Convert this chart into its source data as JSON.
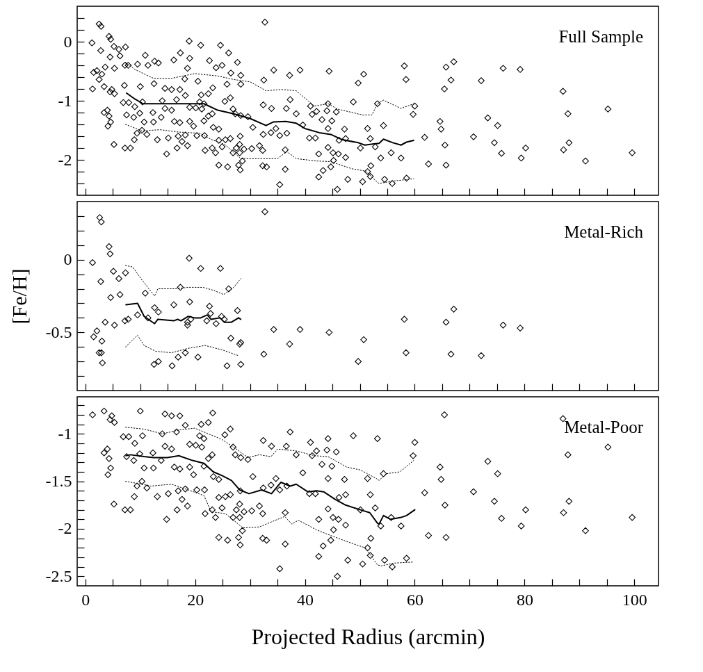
{
  "chart_data": [
    {
      "type": "scatter",
      "annotations": [
        "Full Sample"
      ],
      "tick_labels": "y",
      "xlim": [
        -1.5,
        104.4
      ],
      "ylim": [
        -2.6,
        0.6
      ],
      "xticks": [
        0,
        {
          "value": 5,
          "label": null
        },
        {
          "value": 10,
          "label": null
        },
        {
          "value": 15,
          "label": null
        },
        20,
        {
          "value": 25,
          "label": null
        },
        {
          "value": 30,
          "label": null
        },
        {
          "value": 35,
          "label": null
        },
        40,
        {
          "value": 45,
          "label": null
        },
        {
          "value": 50,
          "label": null
        },
        {
          "value": 55,
          "label": null
        },
        60,
        {
          "value": 65,
          "label": null
        },
        {
          "value": 70,
          "label": null
        },
        {
          "value": 75,
          "label": null
        },
        80,
        {
          "value": 85,
          "label": null
        },
        {
          "value": 90,
          "label": null
        },
        {
          "value": 95,
          "label": null
        },
        100
      ],
      "yticks": [
        {
          "value": -2.4,
          "label": null
        },
        {
          "value": -2.2,
          "label": null
        },
        -2,
        {
          "value": -1.8,
          "label": null
        },
        {
          "value": -1.6,
          "label": null
        },
        {
          "value": -1.4,
          "label": null
        },
        {
          "value": -1.2,
          "label": null
        },
        -1,
        {
          "value": -0.8,
          "label": null
        },
        {
          "value": -0.6,
          "label": null
        },
        {
          "value": -0.4,
          "label": null
        },
        {
          "value": -0.2,
          "label": null
        },
        0,
        {
          "value": 0.2,
          "label": null
        },
        {
          "value": 0.4,
          "label": null
        }
      ],
      "series": [
        {
          "type": "scatter",
          "marker": "diamond",
          "color": "#000000",
          "x": [
            2.5,
            2.85,
            1.2,
            2.8,
            4.3,
            4.6,
            5.2,
            6.1,
            7.3,
            4.5,
            6.3,
            1.5,
            2.1,
            3.0,
            2.5,
            3.4,
            1.3,
            3.6,
            5.3,
            4.8,
            4.5,
            5.3,
            7.2,
            7.8,
            9.5,
            10.9,
            11.4,
            12.6,
            13.3,
            16.1,
            17.3,
            18.9,
            21.0,
            24.6,
            26.1,
            19.0,
            18.6,
            22.6,
            23.8,
            24.9,
            27.7,
            32.7,
            18.1,
            20.5,
            26.5,
            28.3,
            28.3,
            25.8,
            32.5,
            34.3,
            37.2,
            39.1,
            44.4,
            50.7,
            49.7,
            7.1,
            10.0,
            12.5,
            14.5,
            15.7,
            17.2,
            18.2,
            6.9,
            7.9,
            10.4,
            9.0,
            4.0,
            3.4,
            4.3,
            4.6,
            4.1,
            5.2,
            7.2,
            8.2,
            7.5,
            8.8,
            9.9,
            10.7,
            12.3,
            13.8,
            12.4,
            9.4,
            10.3,
            11.2,
            8.9,
            13.1,
            15.1,
            14.8,
            16.7,
            16.2,
            17.2,
            14.5,
            15.7,
            16.6,
            14.0,
            19.0,
            20.1,
            21.2,
            21.1,
            22.4,
            23.2,
            20.8,
            21.6,
            23.1,
            22.4,
            21.6,
            19.0,
            19.7,
            18.2,
            16.9,
            17.6,
            18.6,
            20.3,
            21.7,
            23.3,
            24.3,
            21.8,
            23.1,
            23.7,
            24.3,
            24.9,
            25.5,
            26.4,
            25.4,
            26.4,
            26.9,
            27.3,
            28.3,
            29.6,
            30.5,
            28.2,
            28.1,
            27.5,
            26.9,
            28.1,
            28.9,
            30.3,
            31.7,
            32.3,
            28.6,
            27.9,
            28.2,
            24.3,
            25.9,
            32.3,
            33.0,
            36.4,
            35.4,
            32.4,
            33.9,
            32.4,
            33.8,
            34.7,
            35.4,
            36.7,
            36.6,
            37.3,
            38.4,
            39.6,
            36.4,
            41.0,
            42.1,
            41.3,
            44.2,
            45.7,
            44.0,
            43.1,
            44.9,
            44.2,
            47.2,
            48.8,
            51.4,
            40.8,
            41.9,
            46.2,
            47.4,
            51.9,
            50.1,
            52.8,
            42.5,
            44.2,
            45.1,
            46.1,
            47.4,
            45.2,
            44.7,
            43.3,
            42.5,
            47.8,
            45.9,
            50.5,
            51.4,
            52.0,
            51.9,
            53.2,
            54.3,
            53.8,
            55.7,
            57.5,
            54.5,
            55.9,
            58.5,
            58.1,
            58.4,
            60.0,
            59.7,
            61.8,
            62.5,
            64.6,
            64.8,
            65.5,
            65.7,
            65.4,
            65.7,
            66.6,
            67.1,
            72.1,
            70.7,
            73.3,
            75.1,
            74.5,
            75.8,
            76.1,
            79.2,
            79.4,
            80.2,
            87.0,
            87.9,
            88.1,
            87.1,
            91.1,
            95.2,
            99.6
          ],
          "values": [
            0.3,
            0.26,
            -0.02,
            -0.15,
            0.09,
            0.04,
            -0.08,
            -0.13,
            -0.09,
            -0.26,
            -0.24,
            -0.52,
            -0.49,
            -0.55,
            -0.64,
            -0.76,
            -0.8,
            -0.43,
            -0.45,
            -0.81,
            -0.85,
            -0.88,
            -0.4,
            -0.4,
            -0.38,
            -0.23,
            -0.4,
            -0.33,
            -0.36,
            -0.31,
            -0.19,
            0.01,
            -0.06,
            -0.06,
            -0.19,
            -0.28,
            -0.45,
            -0.32,
            -0.44,
            -0.4,
            -0.35,
            0.33,
            -0.63,
            -0.67,
            -0.53,
            -0.57,
            -0.72,
            -0.72,
            -0.65,
            -0.48,
            -0.57,
            -0.48,
            -0.5,
            -0.55,
            -0.7,
            -0.74,
            -0.76,
            -0.71,
            -0.79,
            -0.81,
            -0.81,
            -0.91,
            -1.03,
            -1.03,
            -1.02,
            -1.1,
            -1.16,
            -1.2,
            -1.26,
            -1.36,
            -1.43,
            -1.74,
            -1.8,
            -1.8,
            -1.24,
            -1.28,
            -1.21,
            -1.36,
            -1.2,
            -1.28,
            -1.36,
            -1.55,
            -1.5,
            -1.57,
            -1.66,
            -1.66,
            -1.63,
            -1.9,
            -1.8,
            -1.35,
            -1.37,
            -1.13,
            -1.16,
            -0.98,
            -1.0,
            -1.11,
            -1.12,
            -1.14,
            -0.9,
            -0.88,
            -0.78,
            -1.02,
            -1.05,
            -1.22,
            -1.26,
            -1.34,
            -1.35,
            -1.43,
            -1.58,
            -1.6,
            -1.69,
            -1.76,
            -1.59,
            -1.59,
            -1.45,
            -1.48,
            -1.84,
            -1.8,
            -1.88,
            -1.67,
            -1.78,
            -1.66,
            -1.64,
            -1.01,
            -0.95,
            -1.14,
            -1.22,
            -1.25,
            -1.27,
            -1.45,
            -1.6,
            -1.74,
            -1.8,
            -1.88,
            -1.88,
            -1.82,
            -1.81,
            -1.76,
            -1.84,
            -2.02,
            -2.09,
            -2.17,
            -2.09,
            -2.12,
            -2.1,
            -2.12,
            -2.16,
            -2.42,
            -1.07,
            -1.13,
            -1.57,
            -1.54,
            -1.47,
            -1.59,
            -1.55,
            -1.13,
            -0.98,
            -1.22,
            -1.41,
            -1.83,
            -1.09,
            -1.18,
            -1.23,
            -1.05,
            -1.19,
            -1.17,
            -1.32,
            -1.34,
            -1.47,
            -1.48,
            -1.02,
            -1.47,
            -1.63,
            -1.63,
            -1.67,
            -1.64,
            -1.64,
            -1.8,
            -1.78,
            -1.9,
            -1.79,
            -1.88,
            -1.9,
            -1.96,
            -2.01,
            -2.12,
            -2.18,
            -2.29,
            -2.33,
            -2.5,
            -2.37,
            -2.2,
            -2.1,
            -2.28,
            -1.05,
            -1.42,
            -1.97,
            -1.88,
            -1.97,
            -2.33,
            -2.4,
            -2.31,
            -0.41,
            -0.64,
            -1.09,
            -1.23,
            -1.62,
            -2.07,
            -1.35,
            -1.48,
            -1.75,
            -2.09,
            -0.8,
            -0.43,
            -0.65,
            -0.34,
            -0.66,
            -1.61,
            -1.29,
            -1.42,
            -1.71,
            -1.89,
            -0.45,
            -0.47,
            -1.97,
            -1.8,
            -0.84,
            -1.22,
            -1.71,
            -1.83,
            -2.02,
            -1.14,
            -1.88
          ]
        },
        {
          "type": "line",
          "line_style": "solid",
          "color": "#000000",
          "x": [
            7.5,
            9.0,
            10.5,
            12.8,
            15.7,
            17.8,
            21.6,
            24.1,
            27.0,
            30.0,
            32.9,
            34.2,
            36.5,
            38.4,
            40.0,
            42.6,
            44.7,
            46.8,
            49.7,
            50.9,
            52.6,
            53.5,
            54.3,
            56.0,
            57.5,
            58.5,
            59.8
          ],
          "values": [
            -0.87,
            -0.97,
            -1.05,
            -1.05,
            -1.05,
            -1.05,
            -1.05,
            -1.16,
            -1.22,
            -1.3,
            -1.42,
            -1.36,
            -1.35,
            -1.38,
            -1.47,
            -1.54,
            -1.57,
            -1.66,
            -1.71,
            -1.75,
            -1.73,
            -1.72,
            -1.65,
            -1.71,
            -1.75,
            -1.7,
            -1.67
          ]
        },
        {
          "type": "line",
          "line_style": "dotted",
          "color": "#000000",
          "x": [
            7.3,
            9.0,
            12.4,
            15.7,
            19.9,
            24.1,
            27.0,
            30.0,
            32.9,
            35.8,
            38.4,
            41.7,
            44.2,
            45.9,
            50.5,
            52.2,
            53.2,
            54.3,
            57.5,
            59.8
          ],
          "values": [
            -0.35,
            -0.47,
            -0.62,
            -0.62,
            -0.54,
            -0.58,
            -0.64,
            -0.68,
            -0.83,
            -0.81,
            -0.83,
            -1.09,
            -1.05,
            -1.14,
            -1.24,
            -1.24,
            -1.05,
            -0.99,
            -1.13,
            -1.05
          ]
        },
        {
          "type": "line",
          "line_style": "dotted",
          "color": "#000000",
          "x": [
            7.3,
            10.3,
            13.6,
            17.0,
            20.8,
            23.3,
            25.4,
            28.3,
            31.7,
            35.0,
            36.7,
            38.4,
            42.2,
            44.7,
            48.5,
            51.0,
            53.2,
            53.5,
            56.0,
            59.8
          ],
          "values": [
            -1.4,
            -1.51,
            -1.49,
            -1.53,
            -1.55,
            -1.67,
            -1.74,
            -1.98,
            -1.98,
            -1.98,
            -1.86,
            -1.98,
            -2.02,
            -2.03,
            -2.15,
            -2.19,
            -2.38,
            -2.4,
            -2.36,
            -2.32
          ]
        }
      ]
    },
    {
      "type": "scatter",
      "annotations": [
        "Metal-Rich"
      ],
      "ylabel": "[Fe/H]",
      "tick_labels": "y",
      "xlim": [
        -1.5,
        104.4
      ],
      "ylim": [
        -0.9,
        0.4
      ],
      "xticks": [
        0,
        {
          "value": 5,
          "label": null
        },
        {
          "value": 10,
          "label": null
        },
        {
          "value": 15,
          "label": null
        },
        20,
        {
          "value": 25,
          "label": null
        },
        {
          "value": 30,
          "label": null
        },
        {
          "value": 35,
          "label": null
        },
        40,
        {
          "value": 45,
          "label": null
        },
        {
          "value": 50,
          "label": null
        },
        {
          "value": 55,
          "label": null
        },
        60,
        {
          "value": 65,
          "label": null
        },
        {
          "value": 70,
          "label": null
        },
        {
          "value": 75,
          "label": null
        },
        80,
        {
          "value": 85,
          "label": null
        },
        {
          "value": 90,
          "label": null
        },
        {
          "value": 95,
          "label": null
        },
        100
      ],
      "yticks": [
        {
          "value": -0.8,
          "label": null
        },
        {
          "value": -0.7,
          "label": null
        },
        {
          "value": -0.6,
          "label": null
        },
        -0.5,
        {
          "value": -0.4,
          "label": null
        },
        {
          "value": -0.3,
          "label": null
        },
        {
          "value": -0.2,
          "label": null
        },
        {
          "value": -0.1,
          "label": null
        },
        0,
        {
          "value": 0.1,
          "label": null
        },
        {
          "value": 0.2,
          "label": null
        },
        {
          "value": 0.3,
          "label": null
        }
      ],
      "series": [
        {
          "type": "scatter",
          "marker": "diamond",
          "color": "#000000",
          "x": [
            2.6,
            2.9,
            1.3,
            4.3,
            4.5,
            2.8,
            5.1,
            6.1,
            7.3,
            4.6,
            6.3,
            3.6,
            5.3,
            2.1,
            1.5,
            3.0,
            2.5,
            2.9,
            3.1,
            7.2,
            7.8,
            9.5,
            10.9,
            11.4,
            12.6,
            13.3,
            16.1,
            17.3,
            18.9,
            21.0,
            24.6,
            26.1,
            19.0,
            18.6,
            18.6,
            19.2,
            22.6,
            22.8,
            22.1,
            23.8,
            24.8,
            25.3,
            27.7,
            26.5,
            28.3,
            28.1,
            32.5,
            32.7,
            34.3,
            37.2,
            39.1,
            44.4,
            50.7,
            49.7,
            12.5,
            13.3,
            15.8,
            16.9,
            18.2,
            20.5,
            25.8,
            28.3,
            58.1,
            58.4,
            65.7,
            66.6,
            67.1,
            72.1,
            76.1,
            79.2
          ],
          "values": [
            0.29,
            0.26,
            -0.02,
            0.09,
            0.04,
            -0.15,
            -0.08,
            -0.13,
            -0.09,
            -0.26,
            -0.24,
            -0.43,
            -0.45,
            -0.49,
            -0.53,
            -0.56,
            -0.64,
            -0.64,
            -0.71,
            -0.42,
            -0.41,
            -0.38,
            -0.23,
            -0.4,
            -0.33,
            -0.36,
            -0.31,
            -0.19,
            0.01,
            -0.06,
            -0.06,
            -0.2,
            -0.29,
            -0.45,
            -0.43,
            -0.41,
            -0.32,
            -0.37,
            -0.42,
            -0.44,
            -0.39,
            -0.41,
            -0.35,
            -0.54,
            -0.57,
            -0.58,
            -0.65,
            0.33,
            -0.48,
            -0.58,
            -0.48,
            -0.5,
            -0.55,
            -0.7,
            -0.72,
            -0.7,
            -0.73,
            -0.67,
            -0.64,
            -0.67,
            -0.73,
            -0.72,
            -0.41,
            -0.64,
            -0.43,
            -0.65,
            -0.34,
            -0.66,
            -0.45,
            -0.47
          ]
        },
        {
          "type": "line",
          "line_style": "solid",
          "color": "#000000",
          "x": [
            7.4,
            9.5,
            10.7,
            12.6,
            13.2,
            16.1,
            16.8,
            17.4,
            18.7,
            19.9,
            21.0,
            22.2,
            22.9,
            24.5,
            25.3,
            26.6,
            27.9,
            28.3
          ],
          "values": [
            -0.31,
            -0.3,
            -0.39,
            -0.44,
            -0.41,
            -0.42,
            -0.41,
            -0.42,
            -0.39,
            -0.4,
            -0.4,
            -0.38,
            -0.41,
            -0.4,
            -0.43,
            -0.43,
            -0.4,
            -0.41
          ]
        },
        {
          "type": "line",
          "line_style": "dotted",
          "color": "#000000",
          "x": [
            7.3,
            8.6,
            10.3,
            12.6,
            13.2,
            16.6,
            18.7,
            21.4,
            23.3,
            25.2,
            27.0,
            28.3
          ],
          "values": [
            -0.04,
            -0.05,
            -0.14,
            -0.25,
            -0.2,
            -0.2,
            -0.19,
            -0.19,
            -0.21,
            -0.24,
            -0.19,
            -0.13
          ]
        },
        {
          "type": "line",
          "line_style": "dotted",
          "color": "#000000",
          "x": [
            7.3,
            9.5,
            10.7,
            12.8,
            15.7,
            18.7,
            21.8,
            24.9,
            27.9
          ],
          "values": [
            -0.6,
            -0.52,
            -0.59,
            -0.63,
            -0.64,
            -0.61,
            -0.59,
            -0.62,
            -0.66
          ]
        }
      ]
    },
    {
      "type": "scatter",
      "annotations": [
        "Metal-Poor"
      ],
      "xlabel": "Projected Radius (arcmin)",
      "xlim": [
        -1.5,
        104.4
      ],
      "ylim": [
        -2.6,
        -0.61
      ],
      "xticks": [
        0,
        {
          "value": 5,
          "label": null
        },
        {
          "value": 10,
          "label": null
        },
        {
          "value": 15,
          "label": null
        },
        20,
        {
          "value": 25,
          "label": null
        },
        {
          "value": 30,
          "label": null
        },
        {
          "value": 35,
          "label": null
        },
        40,
        {
          "value": 45,
          "label": null
        },
        {
          "value": 50,
          "label": null
        },
        {
          "value": 55,
          "label": null
        },
        60,
        {
          "value": 65,
          "label": null
        },
        {
          "value": 70,
          "label": null
        },
        {
          "value": 75,
          "label": null
        },
        80,
        {
          "value": 85,
          "label": null
        },
        {
          "value": 90,
          "label": null
        },
        {
          "value": 95,
          "label": null
        },
        100
      ],
      "yticks": [
        -2.5,
        {
          "value": -2.4,
          "label": null
        },
        {
          "value": -2.3,
          "label": null
        },
        {
          "value": -2.2,
          "label": null
        },
        {
          "value": -2.1,
          "label": null
        },
        -2,
        {
          "value": -1.9,
          "label": null
        },
        {
          "value": -1.8,
          "label": null
        },
        {
          "value": -1.7,
          "label": null
        },
        {
          "value": -1.6,
          "label": null
        },
        -1.5,
        {
          "value": -1.4,
          "label": null
        },
        {
          "value": -1.3,
          "label": null
        },
        {
          "value": -1.2,
          "label": null
        },
        {
          "value": -1.1,
          "label": null
        },
        -1,
        {
          "value": -0.9,
          "label": null
        },
        {
          "value": -0.8,
          "label": null
        },
        {
          "value": -0.7,
          "label": null
        }
      ],
      "series": [
        {
          "type": "scatter",
          "marker": "diamond",
          "color": "#000000",
          "x": [
            3.4,
            1.3,
            4.8,
            4.5,
            5.3,
            10.0,
            14.5,
            15.7,
            17.2,
            18.2,
            6.9,
            7.9,
            10.4,
            9.0,
            4.0,
            3.4,
            4.3,
            4.6,
            4.1,
            5.2,
            7.2,
            8.2,
            7.5,
            8.8,
            9.9,
            10.7,
            12.3,
            13.8,
            12.4,
            9.4,
            10.3,
            11.2,
            8.9,
            13.1,
            15.1,
            14.8,
            16.7,
            16.2,
            17.2,
            14.5,
            15.7,
            16.6,
            14.0,
            19.0,
            20.1,
            21.2,
            21.1,
            22.4,
            23.2,
            20.8,
            21.6,
            23.1,
            22.4,
            21.6,
            19.0,
            19.7,
            18.2,
            16.9,
            17.6,
            18.6,
            20.3,
            21.7,
            23.3,
            24.3,
            21.8,
            23.1,
            23.7,
            24.3,
            24.9,
            25.5,
            26.4,
            25.4,
            26.4,
            26.9,
            27.3,
            28.3,
            29.6,
            30.5,
            28.2,
            28.1,
            27.5,
            26.9,
            28.1,
            28.9,
            30.3,
            31.7,
            32.3,
            28.6,
            27.9,
            28.2,
            24.3,
            25.9,
            32.3,
            33.0,
            36.4,
            35.4,
            32.4,
            33.9,
            32.4,
            33.8,
            34.7,
            35.4,
            36.7,
            36.6,
            37.3,
            38.4,
            39.6,
            36.4,
            41.0,
            42.1,
            41.3,
            44.2,
            45.7,
            44.0,
            43.1,
            44.9,
            44.2,
            47.2,
            48.8,
            51.4,
            40.8,
            41.9,
            46.2,
            47.4,
            51.9,
            50.1,
            52.8,
            42.5,
            44.2,
            45.1,
            46.1,
            47.4,
            45.2,
            44.7,
            43.3,
            42.5,
            47.8,
            45.9,
            50.5,
            51.4,
            52.0,
            51.9,
            53.2,
            54.3,
            53.8,
            55.7,
            57.5,
            54.5,
            55.9,
            58.5,
            60.0,
            59.7,
            61.8,
            62.5,
            64.6,
            64.8,
            65.5,
            65.7,
            65.4,
            70.7,
            73.3,
            75.1,
            74.5,
            75.8,
            79.4,
            80.2,
            87.0,
            87.9,
            88.1,
            87.1,
            91.1,
            95.2,
            99.6
          ],
          "values": [
            -0.76,
            -0.8,
            -0.81,
            -0.85,
            -0.88,
            -0.76,
            -0.79,
            -0.81,
            -0.81,
            -0.91,
            -1.03,
            -1.03,
            -1.02,
            -1.1,
            -1.16,
            -1.2,
            -1.26,
            -1.36,
            -1.43,
            -1.74,
            -1.8,
            -1.8,
            -1.24,
            -1.28,
            -1.21,
            -1.36,
            -1.2,
            -1.28,
            -1.36,
            -1.55,
            -1.5,
            -1.57,
            -1.66,
            -1.66,
            -1.63,
            -1.9,
            -1.8,
            -1.35,
            -1.37,
            -1.13,
            -1.16,
            -0.98,
            -1.0,
            -1.11,
            -1.12,
            -1.14,
            -0.9,
            -0.88,
            -0.78,
            -1.02,
            -1.05,
            -1.22,
            -1.26,
            -1.34,
            -1.35,
            -1.43,
            -1.58,
            -1.6,
            -1.69,
            -1.76,
            -1.59,
            -1.59,
            -1.45,
            -1.48,
            -1.84,
            -1.8,
            -1.88,
            -1.67,
            -1.78,
            -1.66,
            -1.64,
            -1.01,
            -0.95,
            -1.14,
            -1.22,
            -1.25,
            -1.27,
            -1.45,
            -1.6,
            -1.74,
            -1.8,
            -1.88,
            -1.88,
            -1.82,
            -1.81,
            -1.76,
            -1.84,
            -2.02,
            -2.09,
            -2.17,
            -2.09,
            -2.12,
            -2.1,
            -2.12,
            -2.16,
            -2.42,
            -1.07,
            -1.13,
            -1.57,
            -1.54,
            -1.47,
            -1.59,
            -1.55,
            -1.13,
            -0.98,
            -1.22,
            -1.41,
            -1.83,
            -1.09,
            -1.18,
            -1.23,
            -1.05,
            -1.19,
            -1.17,
            -1.32,
            -1.34,
            -1.47,
            -1.48,
            -1.02,
            -1.47,
            -1.63,
            -1.63,
            -1.67,
            -1.64,
            -1.64,
            -1.8,
            -1.78,
            -1.9,
            -1.79,
            -1.88,
            -1.9,
            -1.96,
            -2.01,
            -2.12,
            -2.18,
            -2.29,
            -2.33,
            -2.5,
            -2.37,
            -2.2,
            -2.1,
            -2.28,
            -1.05,
            -1.42,
            -1.97,
            -1.88,
            -1.97,
            -2.33,
            -2.4,
            -2.31,
            -1.09,
            -1.23,
            -1.62,
            -2.07,
            -1.35,
            -1.48,
            -1.75,
            -2.09,
            -0.8,
            -1.61,
            -1.29,
            -1.42,
            -1.71,
            -1.89,
            -1.97,
            -1.8,
            -0.84,
            -1.22,
            -1.71,
            -1.83,
            -2.02,
            -1.14,
            -1.88
          ]
        },
        {
          "type": "line",
          "line_style": "solid",
          "color": "#000000",
          "x": [
            7.4,
            8.2,
            10.7,
            12.4,
            14.9,
            17.0,
            19.5,
            21.6,
            23.3,
            24.9,
            26.6,
            28.1,
            29.8,
            32.1,
            33.9,
            35.6,
            37.3,
            38.4,
            40.5,
            42.1,
            43.4,
            45.5,
            47.4,
            50.1,
            51.8,
            53.2,
            53.5,
            54.3,
            55.6,
            57.5,
            58.5,
            60.0
          ],
          "values": [
            -1.23,
            -1.22,
            -1.24,
            -1.25,
            -1.25,
            -1.23,
            -1.28,
            -1.31,
            -1.4,
            -1.44,
            -1.49,
            -1.59,
            -1.63,
            -1.59,
            -1.63,
            -1.51,
            -1.55,
            -1.53,
            -1.61,
            -1.6,
            -1.61,
            -1.69,
            -1.75,
            -1.8,
            -1.83,
            -1.94,
            -1.95,
            -1.86,
            -1.9,
            -1.88,
            -1.86,
            -1.8
          ]
        },
        {
          "type": "line",
          "line_style": "dotted",
          "color": "#000000",
          "x": [
            7.3,
            10.7,
            14.0,
            17.0,
            19.9,
            22.0,
            24.9,
            27.5,
            29.6,
            31.7,
            33.8,
            35.0,
            38.4,
            41.7,
            44.2,
            47.6,
            50.1,
            53.0,
            53.5,
            54.8,
            57.3,
            59.8
          ],
          "values": [
            -0.93,
            -0.95,
            -1.0,
            -0.96,
            -0.94,
            -0.99,
            -1.06,
            -1.16,
            -1.25,
            -1.22,
            -1.24,
            -1.16,
            -1.18,
            -1.23,
            -1.24,
            -1.35,
            -1.38,
            -1.47,
            -1.49,
            -1.42,
            -1.4,
            -1.28
          ]
        },
        {
          "type": "line",
          "line_style": "dotted",
          "color": "#000000",
          "x": [
            7.3,
            10.3,
            11.9,
            15.7,
            18.2,
            21.6,
            22.9,
            25.5,
            28.7,
            31.7,
            34.6,
            36.3,
            37.6,
            38.8,
            42.1,
            44.2,
            48.4,
            51.0,
            53.2,
            53.9,
            56.4,
            59.6
          ],
          "values": [
            -1.5,
            -1.53,
            -1.55,
            -1.53,
            -1.58,
            -1.65,
            -1.82,
            -1.84,
            -1.99,
            -1.98,
            -1.91,
            -1.87,
            -1.95,
            -1.91,
            -2.01,
            -2.06,
            -2.15,
            -2.2,
            -2.38,
            -2.39,
            -2.36,
            -2.35
          ]
        }
      ]
    }
  ]
}
